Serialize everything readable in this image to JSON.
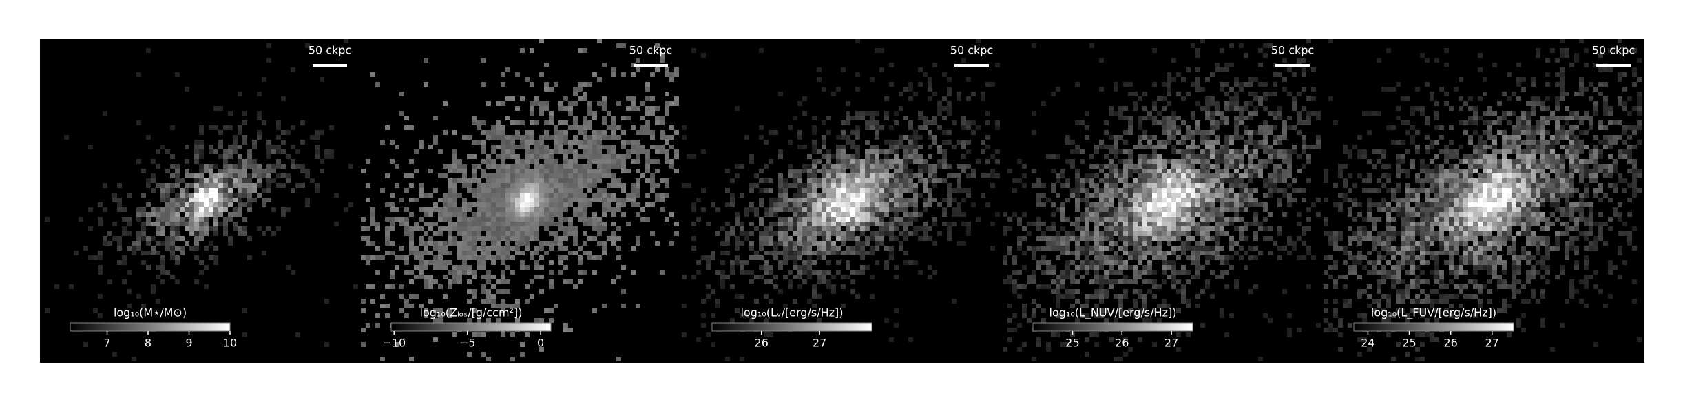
{
  "chart_data": [
    {
      "type": "image",
      "scale_bar": "50 ckpc",
      "colorbar_label": "log₁₀(M⋆/M⊙)",
      "clim": [
        6.1,
        10
      ],
      "cticks": [
        7,
        8,
        9,
        10
      ]
    },
    {
      "type": "image",
      "scale_bar": "50 ckpc",
      "colorbar_label": "log₁₀(Zₗₒₛ/[g/ccm²])",
      "clim": [
        -10.2,
        0.7
      ],
      "cticks": [
        {
          "value": -10,
          "label": "−10"
        },
        {
          "value": -5,
          "label": "−5"
        },
        0
      ]
    },
    {
      "type": "image",
      "scale_bar": "50 ckpc",
      "colorbar_label": "log₁₀(Lᵥ/[erg/s/Hz])",
      "clim": [
        25.15,
        27.9
      ],
      "cticks": [
        26,
        27
      ]
    },
    {
      "type": "image",
      "scale_bar": "50 ckpc",
      "colorbar_label": "log₁₀(L_NUV/[erg/s/Hz])",
      "clim": [
        24.2,
        27.43
      ],
      "cticks": [
        25,
        26,
        27
      ]
    },
    {
      "type": "image",
      "scale_bar": "50 ckpc",
      "colorbar_label": "log₁₀(L_FUV/[erg/s/Hz])",
      "clim": [
        23.66,
        27.52
      ],
      "cticks": [
        24,
        25,
        26,
        27
      ]
    }
  ]
}
